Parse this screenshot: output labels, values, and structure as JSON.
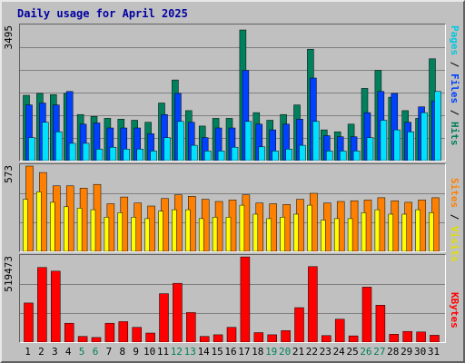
{
  "title": "Daily usage for April 2025",
  "colors": {
    "hits": "#00805c",
    "files": "#0040ff",
    "pages": "#00e0ff",
    "visits": "#ffff00",
    "sites": "#ff8000",
    "kbytes": "#ff0000",
    "weekday_label": "#000000",
    "weekend_label": "#00805c",
    "grid": "#808080"
  },
  "legend": {
    "pages": "Pages",
    "files": "Files",
    "hits": "Hits",
    "visits": "Visits",
    "sites": "Sites",
    "kbytes": "KBytes",
    "sep": " / "
  },
  "chart_data": [
    {
      "type": "bar",
      "title": "Daily usage for April 2025",
      "categories": [
        "1",
        "2",
        "3",
        "4",
        "5",
        "6",
        "7",
        "8",
        "9",
        "10",
        "11",
        "12",
        "13",
        "14",
        "15",
        "16",
        "17",
        "18",
        "19",
        "20",
        "21",
        "22",
        "23",
        "24",
        "25",
        "26",
        "27",
        "28",
        "29",
        "30",
        "31"
      ],
      "weekend_days": [
        "5",
        "6",
        "12",
        "13",
        "19",
        "20",
        "26",
        "27"
      ],
      "ymax_label": "3495",
      "ylim": [
        0,
        3495
      ],
      "series": [
        {
          "name": "Hits",
          "values": [
            1700,
            1750,
            1720,
            1750,
            1200,
            1150,
            1100,
            1080,
            1050,
            1000,
            1500,
            2100,
            1300,
            900,
            1100,
            1100,
            3400,
            1250,
            1050,
            1200,
            1450,
            2900,
            800,
            750,
            950,
            1880,
            2350,
            1650,
            1300,
            1100,
            2650
          ]
        },
        {
          "name": "Files",
          "values": [
            1450,
            1500,
            1450,
            1800,
            950,
            980,
            850,
            850,
            850,
            700,
            1200,
            1750,
            1000,
            600,
            850,
            850,
            2350,
            950,
            800,
            950,
            1080,
            2150,
            650,
            620,
            620,
            1250,
            1800,
            1750,
            1000,
            1400,
            1550
          ]
        },
        {
          "name": "Pages",
          "values": [
            600,
            1000,
            750,
            450,
            450,
            300,
            350,
            300,
            300,
            250,
            600,
            1020,
            400,
            250,
            250,
            350,
            1020,
            360,
            250,
            300,
            400,
            1020,
            250,
            250,
            250,
            600,
            1050,
            800,
            750,
            1250,
            1800
          ]
        }
      ]
    },
    {
      "type": "bar",
      "categories": [
        "1",
        "2",
        "3",
        "4",
        "5",
        "6",
        "7",
        "8",
        "9",
        "10",
        "11",
        "12",
        "13",
        "14",
        "15",
        "16",
        "17",
        "18",
        "19",
        "20",
        "21",
        "22",
        "23",
        "24",
        "25",
        "26",
        "27",
        "28",
        "29",
        "30",
        "31"
      ],
      "ymax_label": "573",
      "ylim": [
        0,
        573
      ],
      "series": [
        {
          "name": "Sites",
          "values": [
            573,
            530,
            440,
            440,
            425,
            450,
            320,
            365,
            325,
            305,
            355,
            380,
            370,
            350,
            335,
            345,
            380,
            325,
            320,
            315,
            350,
            390,
            325,
            335,
            340,
            345,
            360,
            340,
            330,
            345,
            360
          ]
        },
        {
          "name": "Visits",
          "values": [
            350,
            400,
            330,
            300,
            290,
            280,
            230,
            260,
            230,
            220,
            270,
            280,
            280,
            220,
            230,
            230,
            310,
            250,
            220,
            230,
            250,
            310,
            210,
            220,
            220,
            260,
            280,
            250,
            250,
            280,
            260
          ]
        }
      ]
    },
    {
      "type": "bar",
      "categories": [
        "1",
        "2",
        "3",
        "4",
        "5",
        "6",
        "7",
        "8",
        "9",
        "10",
        "11",
        "12",
        "13",
        "14",
        "15",
        "16",
        "17",
        "18",
        "19",
        "20",
        "21",
        "22",
        "23",
        "24",
        "25",
        "26",
        "27",
        "28",
        "29",
        "30",
        "31"
      ],
      "ymax_label": "519473",
      "ylim": [
        0,
        519473
      ],
      "series": [
        {
          "name": "KBytes",
          "values": [
            238000,
            455000,
            432000,
            115000,
            35000,
            28000,
            115000,
            125000,
            90000,
            55000,
            295000,
            358000,
            180000,
            35000,
            45000,
            90000,
            519000,
            58000,
            45000,
            70000,
            210000,
            460000,
            40000,
            140000,
            38000,
            335000,
            225000,
            48000,
            65000,
            62000,
            42000
          ]
        }
      ]
    }
  ]
}
